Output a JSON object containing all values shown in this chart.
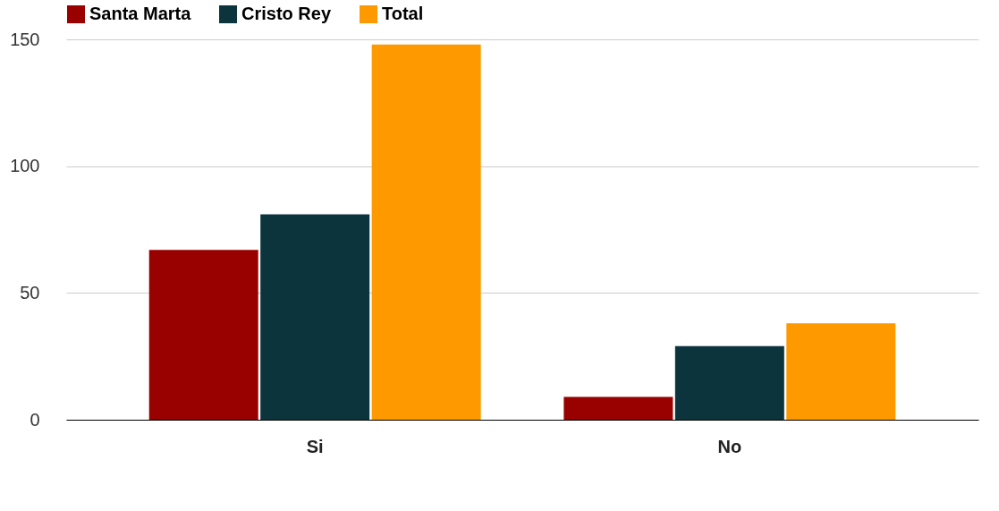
{
  "chart_data": {
    "type": "bar",
    "categories": [
      "Si",
      "No"
    ],
    "series": [
      {
        "name": "Santa Marta",
        "color": "#990000",
        "values": [
          67,
          9
        ]
      },
      {
        "name": "Cristo Rey",
        "color": "#0c343d",
        "values": [
          81,
          29
        ]
      },
      {
        "name": "Total",
        "color": "#ff9900",
        "values": [
          148,
          38
        ]
      }
    ],
    "ylim": [
      0,
      150
    ],
    "yticks": [
      0,
      50,
      100,
      150
    ],
    "grid": "y",
    "legend": "top"
  }
}
